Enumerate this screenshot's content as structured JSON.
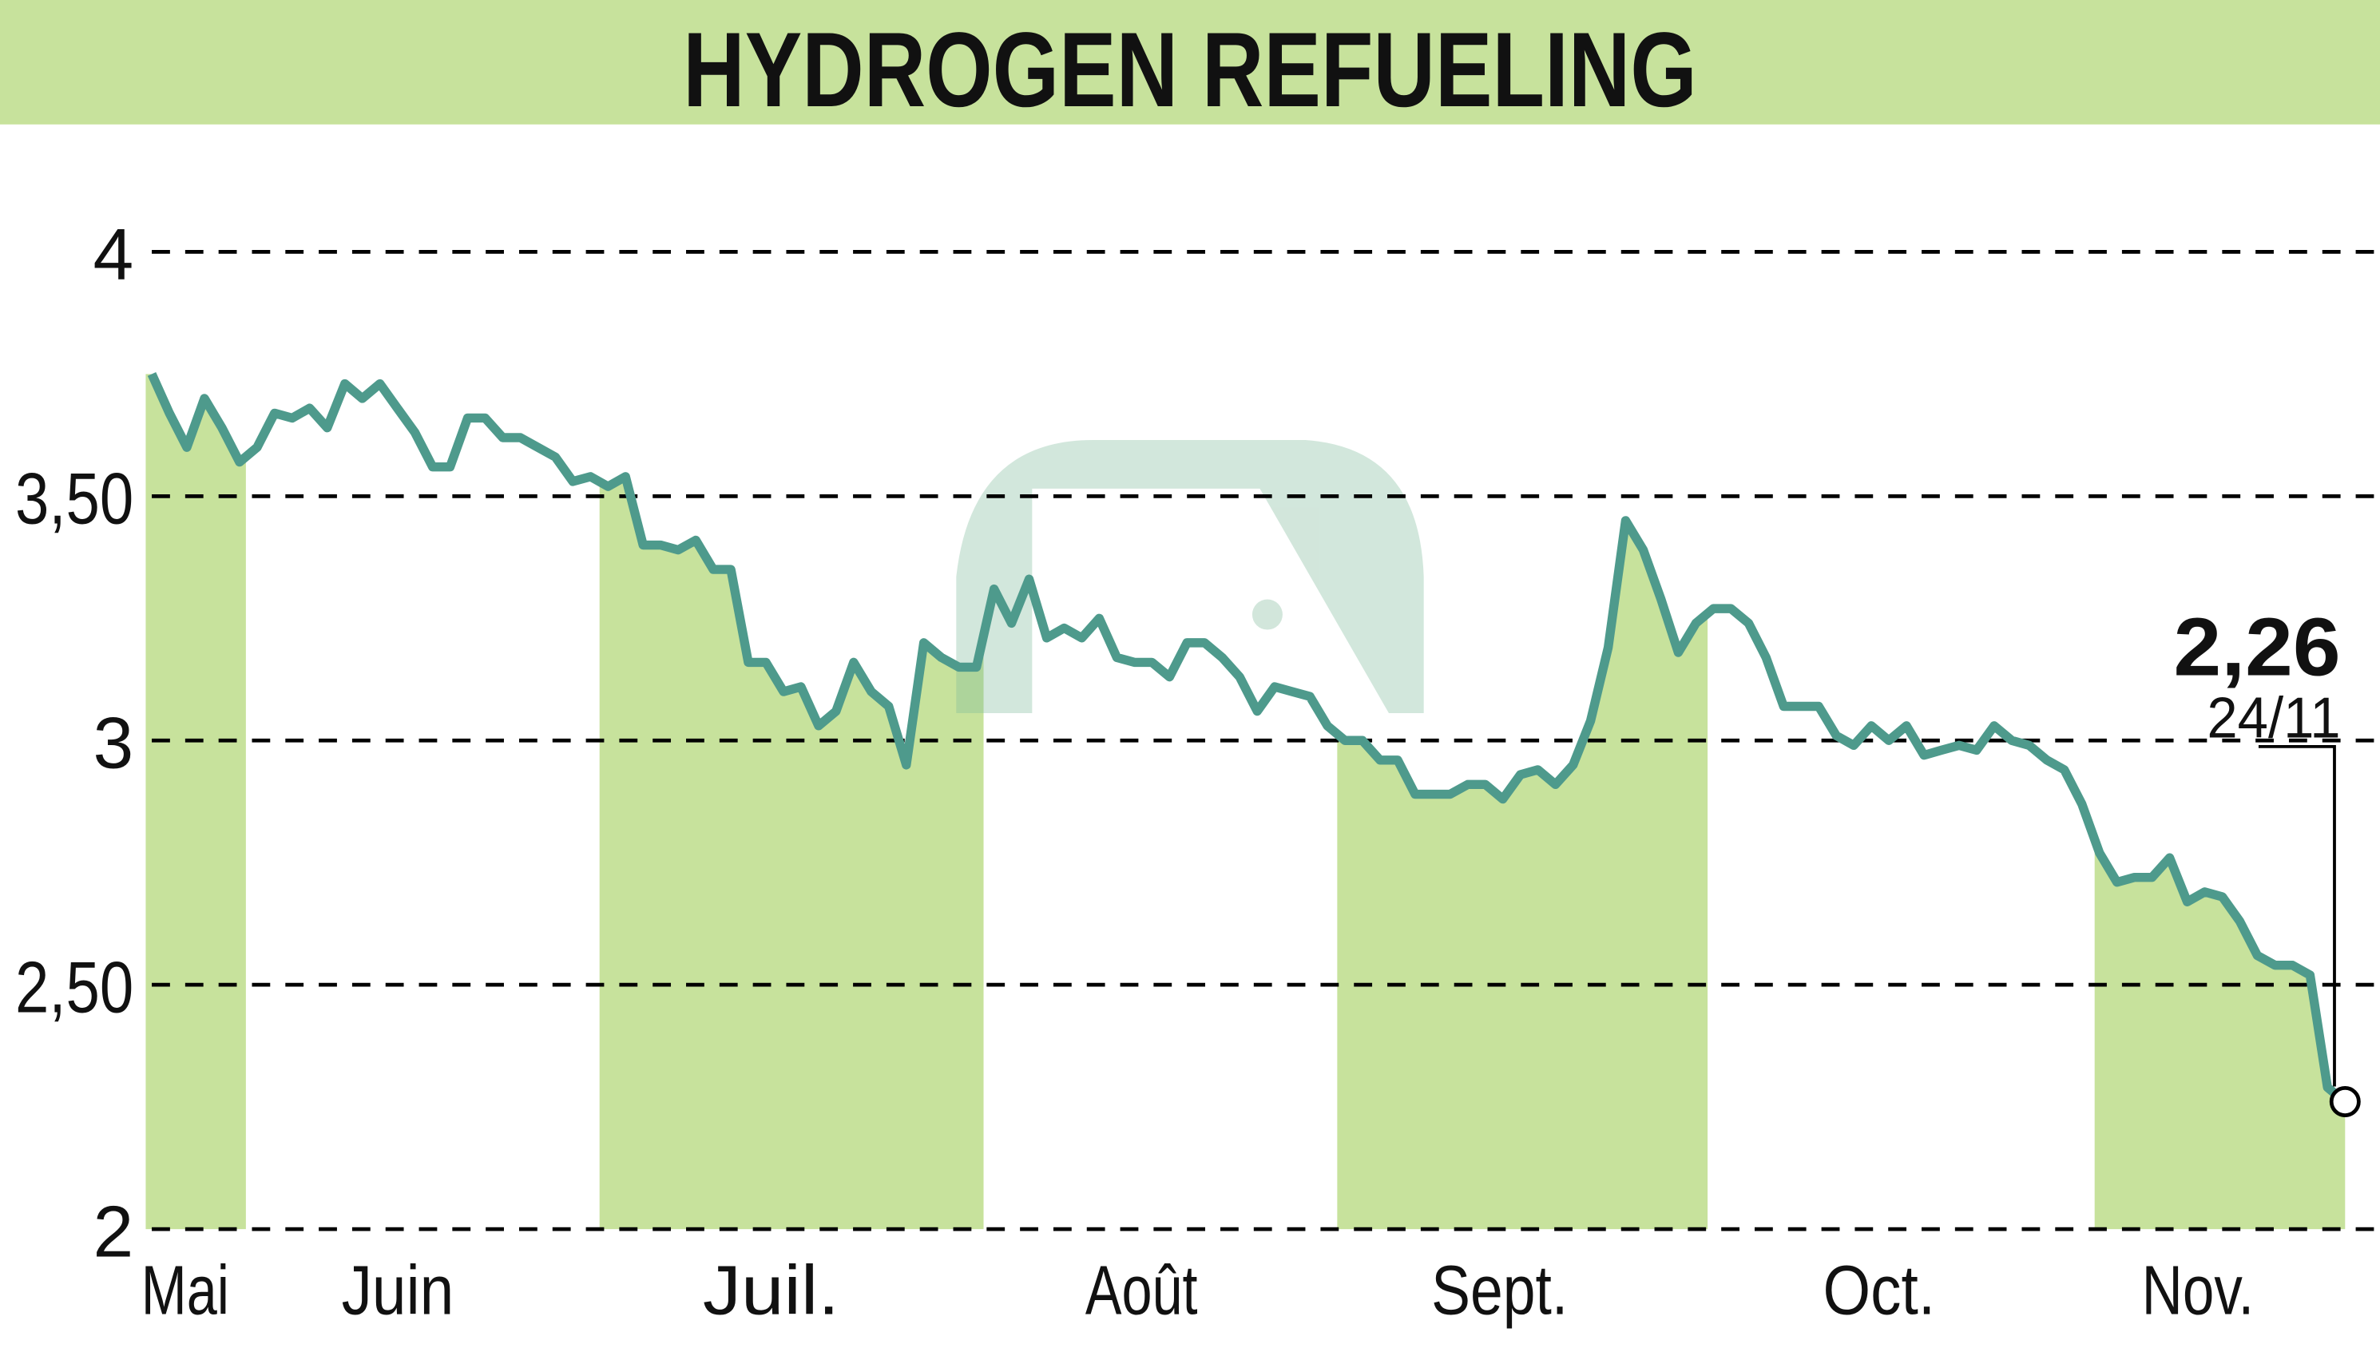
{
  "chart_data": {
    "type": "line",
    "title": "HYDROGEN REFUELING",
    "ylim": [
      2,
      4
    ],
    "yticks": [
      {
        "value": 4,
        "label": "4"
      },
      {
        "value": 3.5,
        "label": "3,50"
      },
      {
        "value": 3,
        "label": "3"
      },
      {
        "value": 2.5,
        "label": "2,50"
      },
      {
        "value": 2,
        "label": "2"
      }
    ],
    "month_labels": [
      "Mai",
      "Juin",
      "Juil.",
      "Août",
      "Sept.",
      "Oct.",
      "Nov."
    ],
    "shaded_months": [
      "Mai",
      "Juil.",
      "Sept.",
      "Nov."
    ],
    "grid": "horizontal dashed",
    "values": [
      3.75,
      3.67,
      3.6,
      3.7,
      3.64,
      3.57,
      3.6,
      3.67,
      3.66,
      3.68,
      3.64,
      3.73,
      3.7,
      3.73,
      3.68,
      3.63,
      3.56,
      3.56,
      3.66,
      3.66,
      3.62,
      3.62,
      3.6,
      3.58,
      3.53,
      3.54,
      3.52,
      3.54,
      3.4,
      3.4,
      3.39,
      3.41,
      3.35,
      3.35,
      3.16,
      3.16,
      3.1,
      3.11,
      3.03,
      3.06,
      3.16,
      3.1,
      3.07,
      2.95,
      3.2,
      3.17,
      3.15,
      3.15,
      3.31,
      3.24,
      3.33,
      3.21,
      3.23,
      3.21,
      3.25,
      3.17,
      3.16,
      3.16,
      3.13,
      3.2,
      3.2,
      3.17,
      3.13,
      3.06,
      3.11,
      3.1,
      3.09,
      3.03,
      3.0,
      3.0,
      2.96,
      2.96,
      2.89,
      2.89,
      2.89,
      2.91,
      2.91,
      2.88,
      2.93,
      2.94,
      2.91,
      2.95,
      3.04,
      3.19,
      3.45,
      3.39,
      3.29,
      3.18,
      3.24,
      3.27,
      3.27,
      3.24,
      3.17,
      3.07,
      3.07,
      3.07,
      3.01,
      2.99,
      3.03,
      3.0,
      3.03,
      2.97,
      2.98,
      2.99,
      2.98,
      3.03,
      3.0,
      2.99,
      2.96,
      2.94,
      2.87,
      2.77,
      2.71,
      2.72,
      2.72,
      2.76,
      2.67,
      2.69,
      2.68,
      2.63,
      2.56,
      2.54,
      2.54,
      2.52,
      2.29,
      2.26
    ],
    "last_value_label": "2,26",
    "last_date_label": "24/11",
    "colors": {
      "line": "#4e9a8c",
      "band": "#c7e29c",
      "header": "#c7e29c",
      "grid": "#000000"
    }
  }
}
